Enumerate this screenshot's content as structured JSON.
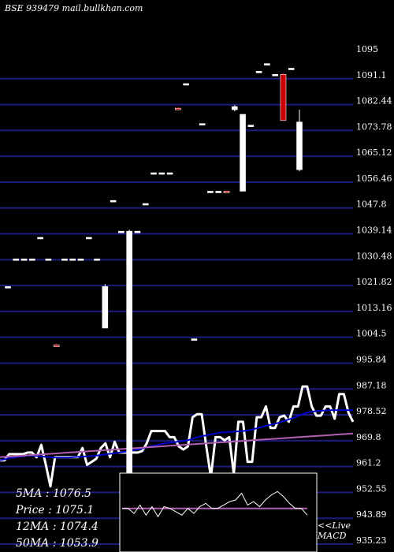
{
  "header": {
    "title": "BSE 939479 mail.bullkhan.com"
  },
  "chart_data": {
    "type": "candlestick",
    "ylim": [
      935.23,
      1095
    ],
    "y_ticks": [
      "1095",
      "1091.1",
      "1082.44",
      "1073.78",
      "1065.12",
      "1056.46",
      "1047.8",
      "1039.14",
      "1030.48",
      "1021.82",
      "1013.16",
      "1004.5",
      "995.84",
      "987.18",
      "978.52",
      "969.8",
      "961.2",
      "952.55",
      "943.89",
      "935.23"
    ],
    "candles": [
      {
        "o": 1019.0,
        "h": 1019.0,
        "l": 1019.0,
        "c": 1019.0,
        "color": "white"
      },
      {
        "o": 1028.0,
        "h": 1028.0,
        "l": 1028.0,
        "c": 1028.0,
        "color": "white"
      },
      {
        "o": 1028.0,
        "h": 1028.0,
        "l": 1028.0,
        "c": 1028.0,
        "color": "white"
      },
      {
        "o": 1028.0,
        "h": 1028.0,
        "l": 1028.0,
        "c": 1028.0,
        "color": "white"
      },
      {
        "o": 1035.0,
        "h": 1035.0,
        "l": 1035.0,
        "c": 1035.0,
        "color": "white"
      },
      {
        "o": 1028.0,
        "h": 1028.0,
        "l": 1028.0,
        "c": 1028.0,
        "color": "white"
      },
      {
        "o": 1000.0,
        "h": 1000.5,
        "l": 999.5,
        "c": 1000.0,
        "color": "red"
      },
      {
        "o": 1028.0,
        "h": 1028.0,
        "l": 1028.0,
        "c": 1028.0,
        "color": "white"
      },
      {
        "o": 1028.0,
        "h": 1028.0,
        "l": 1028.0,
        "c": 1028.0,
        "color": "white"
      },
      {
        "o": 1028.0,
        "h": 1028.0,
        "l": 1028.0,
        "c": 1028.0,
        "color": "white"
      },
      {
        "o": 1035.0,
        "h": 1035.0,
        "l": 1035.0,
        "c": 1035.0,
        "color": "white"
      },
      {
        "o": 1028.0,
        "h": 1028.0,
        "l": 1028.0,
        "c": 1028.0,
        "color": "white"
      },
      {
        "o": 1005.5,
        "h": 1019.8,
        "l": 1005.5,
        "c": 1019.0,
        "color": "white"
      },
      {
        "o": 1047.0,
        "h": 1047.0,
        "l": 1047.0,
        "c": 1047.0,
        "color": "white"
      },
      {
        "o": 1037.0,
        "h": 1037.0,
        "l": 1037.0,
        "c": 1037.0,
        "color": "white"
      },
      {
        "o": 952.0,
        "h": 1037.5,
        "l": 952.0,
        "c": 1037.0,
        "color": "white"
      },
      {
        "o": 1037.0,
        "h": 1037.0,
        "l": 1037.0,
        "c": 1037.0,
        "color": "white"
      },
      {
        "o": 1046.0,
        "h": 1046.0,
        "l": 1046.0,
        "c": 1046.0,
        "color": "white"
      },
      {
        "o": 1056.0,
        "h": 1056.0,
        "l": 1056.0,
        "c": 1056.0,
        "color": "white"
      },
      {
        "o": 1056.0,
        "h": 1056.0,
        "l": 1056.0,
        "c": 1056.0,
        "color": "white"
      },
      {
        "o": 1056.0,
        "h": 1056.0,
        "l": 1056.0,
        "c": 1056.0,
        "color": "white"
      },
      {
        "o": 1077.0,
        "h": 1077.5,
        "l": 1076.5,
        "c": 1077.0,
        "color": "red"
      },
      {
        "o": 1085.0,
        "h": 1085.0,
        "l": 1085.0,
        "c": 1085.0,
        "color": "white"
      },
      {
        "o": 1002.0,
        "h": 1002.0,
        "l": 1002.0,
        "c": 1002.0,
        "color": "white"
      },
      {
        "o": 1072.0,
        "h": 1072.0,
        "l": 1072.0,
        "c": 1072.0,
        "color": "white"
      },
      {
        "o": 1050.0,
        "h": 1050.0,
        "l": 1050.0,
        "c": 1050.0,
        "color": "white"
      },
      {
        "o": 1050.0,
        "h": 1050.0,
        "l": 1050.0,
        "c": 1050.0,
        "color": "white"
      },
      {
        "o": 1050.0,
        "h": 1050.0,
        "l": 1050.0,
        "c": 1050.0,
        "color": "red"
      },
      {
        "o": 1076.5,
        "h": 1078.0,
        "l": 1076.0,
        "c": 1077.5,
        "color": "white"
      },
      {
        "o": 1050.0,
        "h": 1075.0,
        "l": 1050.0,
        "c": 1075.0,
        "color": "white"
      },
      {
        "o": 1071.5,
        "h": 1071.5,
        "l": 1071.5,
        "c": 1071.5,
        "color": "white"
      },
      {
        "o": 1089.0,
        "h": 1089.0,
        "l": 1089.0,
        "c": 1089.0,
        "color": "white"
      },
      {
        "o": 1091.5,
        "h": 1091.5,
        "l": 1091.5,
        "c": 1091.5,
        "color": "white"
      },
      {
        "o": 1088.0,
        "h": 1088.0,
        "l": 1088.0,
        "c": 1088.0,
        "color": "white"
      },
      {
        "o": 1088.0,
        "h": 1088.5,
        "l": 1073.0,
        "c": 1073.0,
        "color": "red"
      },
      {
        "o": 1090.0,
        "h": 1090.0,
        "l": 1090.0,
        "c": 1090.0,
        "color": "white"
      },
      {
        "o": 1057.0,
        "h": 1076.5,
        "l": 1056.5,
        "c": 1072.5,
        "color": "white"
      }
    ],
    "volume_series": {
      "name": "",
      "values": [
        962.5,
        962.5,
        964.5,
        964.5,
        964.5,
        964.5,
        965,
        965,
        963.5,
        967.5,
        961,
        954,
        963.5,
        963.5,
        963.5,
        963.5,
        963.5,
        963.5,
        966.5,
        961,
        962,
        963,
        966.5,
        968,
        963.5,
        968.5,
        965,
        965,
        965,
        965,
        965,
        965.5,
        968,
        972,
        972,
        972,
        972,
        970,
        970,
        967,
        966,
        967,
        976.5,
        977.5,
        977.5,
        967,
        957,
        970,
        970,
        969,
        970,
        958,
        975,
        975,
        962,
        962,
        976.5,
        976.5,
        980,
        973,
        973,
        976.5,
        977,
        975,
        980,
        980,
        986.5,
        986.5,
        980,
        977,
        977,
        980,
        980,
        976,
        984,
        984,
        978,
        975
      ]
    },
    "ma_series": [
      {
        "name": "",
        "color": "#ffffff",
        "values": [
          962.5,
          962.5,
          964.5,
          964.5,
          964.5,
          964.5,
          965,
          965,
          963.5,
          967.5,
          961,
          954,
          963.5,
          963.5,
          963.5,
          963.5,
          963.5,
          963.5,
          966.5,
          961,
          962,
          963,
          966.5,
          968,
          963.5,
          968.5,
          965,
          965,
          965,
          965,
          965,
          965.5,
          968,
          972,
          972,
          972,
          972,
          970,
          970,
          967,
          966,
          967,
          976.5,
          977.5,
          977.5,
          967,
          957,
          970,
          970,
          969,
          970,
          958,
          975,
          975,
          962,
          962,
          976.5,
          976.5,
          980,
          973,
          973,
          976.5,
          977,
          975,
          980,
          980,
          986.5,
          986.5,
          980,
          977,
          977,
          980,
          980,
          976,
          984,
          984,
          978,
          975
        ]
      },
      {
        "name": "",
        "color": "#0000cc",
        "values": [
          962.5,
          962.8,
          963.2,
          963.4,
          963.6,
          963.8,
          964,
          964,
          963.9,
          963.8,
          963.6,
          963.5,
          963.4,
          963.4,
          963.4,
          963.4,
          963.5,
          963.6,
          963.7,
          963.8,
          963.9,
          964.0,
          964.2,
          964.4,
          964.6,
          964.8,
          965.0,
          965.2,
          965.4,
          965.7,
          966.0,
          966.3,
          966.7,
          967.1,
          967.4,
          967.7,
          968.0,
          968.2,
          968.4,
          968.6,
          968.8,
          969,
          969.5,
          970,
          970.3,
          970.6,
          970.9,
          971.2,
          971.5,
          971.6,
          971.7,
          971.8,
          971.9,
          972.0,
          972.2,
          972.5,
          972.9,
          973.3,
          973.7,
          974,
          974.4,
          974.8,
          975.3,
          975.8,
          976.3,
          976.9,
          977.5,
          978,
          978.3,
          978.5,
          978.6,
          978.7,
          978.8,
          978.8,
          978.8,
          978.8,
          978.8,
          978.8
        ]
      },
      {
        "name": "",
        "color": "#b060b0",
        "values": [
          963.5,
          963.6,
          963.7,
          963.8,
          963.9,
          964.0,
          964.1,
          964.2,
          964.3,
          964.4,
          964.5,
          964.6,
          964.7,
          964.8,
          964.9,
          965.0,
          965.1,
          965.2,
          965.3,
          965.4,
          965.5,
          965.6,
          965.7,
          965.8,
          965.9,
          966.0,
          966.1,
          966.2,
          966.3,
          966.4,
          966.5,
          966.6,
          966.7,
          966.8,
          966.9,
          967.0,
          967.1,
          967.2,
          967.3,
          967.4,
          967.5,
          967.6,
          967.7,
          967.8,
          967.9,
          968.0,
          968.1,
          968.2,
          968.3,
          968.4,
          968.5,
          968.6,
          968.7,
          968.8,
          968.9,
          969.0,
          969.1,
          969.2,
          969.3,
          969.4,
          969.5,
          969.6,
          969.7,
          969.8,
          969.9,
          970.0,
          970.1,
          970.2,
          970.3,
          970.4,
          970.5,
          970.6,
          970.7,
          970.8,
          970.9,
          971.0,
          971.1,
          971.2
        ]
      }
    ],
    "macd": {
      "label_prefix": "<<Live",
      "label": "MACD",
      "line": [
        0.0,
        0.0,
        -0.3,
        0.2,
        -0.4,
        0.1,
        -0.5,
        0.1,
        0.0,
        -0.2,
        -0.4,
        0.0,
        -0.3,
        0.1,
        0.3,
        0.0,
        0.0,
        0.2,
        0.4,
        0.5,
        0.9,
        0.2,
        0.4,
        0.1,
        0.5,
        0.8,
        1.0,
        0.7,
        0.3,
        0.0,
        0.0,
        -0.4
      ],
      "signal": [
        0.0,
        0.0,
        0.0,
        0.0,
        0.0,
        0.0,
        0.0,
        0.0,
        0.0,
        0.0,
        0.0,
        0.0,
        0.0,
        0.0,
        0.0,
        0.0,
        0.0,
        0.0,
        0.0,
        0.0,
        0.0,
        0.0,
        0.0,
        0.0,
        0.0,
        0.0,
        0.0,
        0.0,
        0.0,
        0.0,
        0.0,
        0.0
      ],
      "ylim": [
        -2.5,
        2.0
      ]
    }
  },
  "stats": [
    {
      "label": "5MA",
      "value": "1076.5"
    },
    {
      "label": "Price",
      "value": "1075.1"
    },
    {
      "label": "12MA",
      "value": "1074.4"
    },
    {
      "label": "50MA",
      "value": "1053.9"
    }
  ],
  "colors": {
    "background": "#000000",
    "grid": "#1c1c7c",
    "up": "#ffffff",
    "down": "#cc0000",
    "ma12": "#0000cc",
    "ma50": "#b060b0",
    "macd_signal": "#b060b0"
  }
}
